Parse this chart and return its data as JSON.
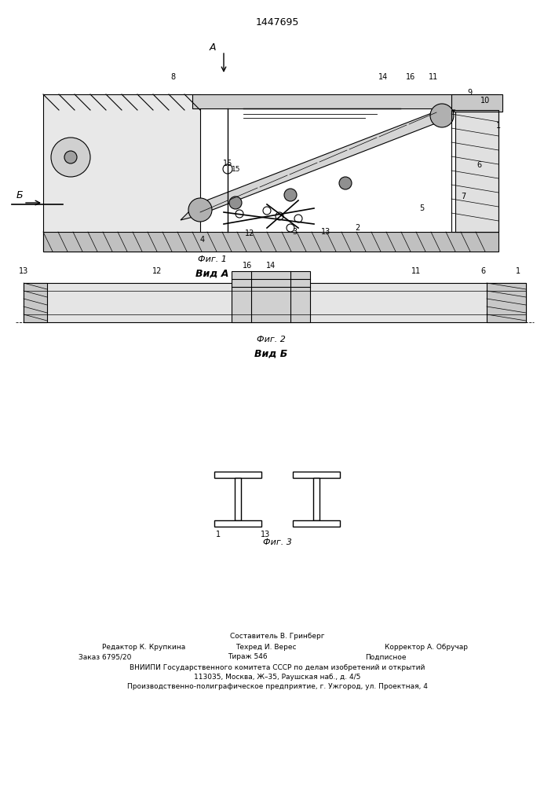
{
  "patent_number": "1447695",
  "background_color": "#ffffff",
  "line_color": "#000000",
  "fig_width": 7.07,
  "fig_height": 10.0,
  "footer": {
    "composer": "Составитель В. Гринберг",
    "editor": "Редактор К. Крупкина",
    "techred": "Техред И. Верес",
    "corrector": "Корректор А. Обручар",
    "order": "Заказ 6795/20",
    "tirazh": "Тираж 546",
    "podpisnoe": "Подписное",
    "vniip1": "ВНИИПИ Государственного комитета СССР по делам изобретений и открытий",
    "vniip2": "113035, Москва, Ж–35, Раушская наб., д. 4/5",
    "vniip3": "Производственно-полиграфическое предприятие, г. Ужгород, ул. Проектная, 4"
  },
  "fig1_label": "Фиг. 1",
  "fig2_label": "Фиг. 2",
  "fig3_label": "Фиг. 3",
  "vid_a_label": "Вид А",
  "vid_b_label": "Вид Б"
}
